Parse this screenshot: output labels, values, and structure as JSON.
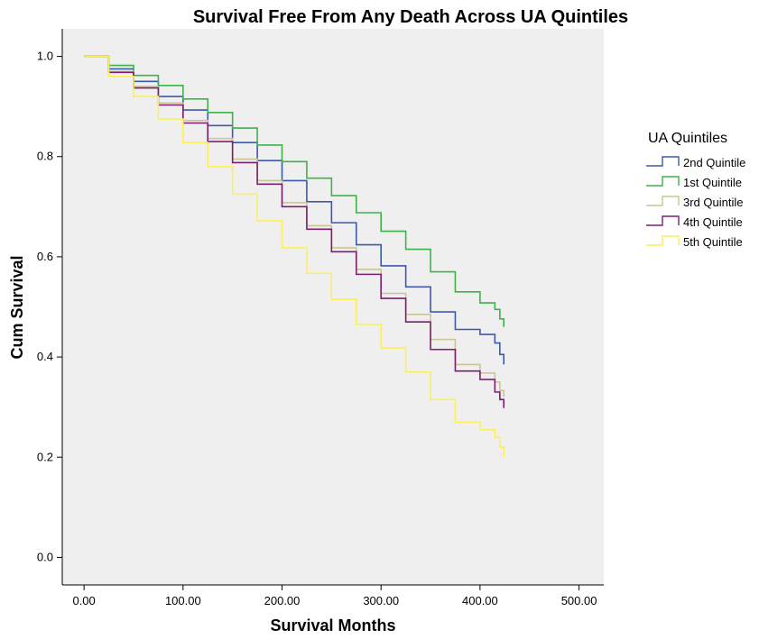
{
  "chart_data": {
    "type": "line",
    "title": "Survival Free From Any Death Across UA Quintiles",
    "xlabel": "Survival Months",
    "ylabel": "Cum Survival",
    "xlim": [
      -22,
      525
    ],
    "ylim": [
      -0.055,
      1.055
    ],
    "xticks": [
      0,
      100,
      200,
      300,
      400,
      500
    ],
    "xtick_labels": [
      "0.00",
      "100.00",
      "200.00",
      "300.00",
      "400.00",
      "500.00"
    ],
    "yticks": [
      0.0,
      0.2,
      0.4,
      0.6,
      0.8,
      1.0
    ],
    "ytick_labels": [
      "0.0",
      "0.2",
      "0.4",
      "0.6",
      "0.8",
      "1.0"
    ],
    "background": "#efefef",
    "grid": false,
    "step": true,
    "legend": {
      "title": "UA Quintiles",
      "placement": "right"
    },
    "series": [
      {
        "name": "2nd Quintile",
        "color": "#3e58ac",
        "x": [
          0,
          25,
          50,
          75,
          100,
          125,
          150,
          175,
          200,
          225,
          250,
          275,
          300,
          325,
          350,
          375,
          400,
          415,
          420,
          424
        ],
        "y": [
          1.0,
          0.975,
          0.95,
          0.92,
          0.893,
          0.862,
          0.828,
          0.792,
          0.752,
          0.71,
          0.668,
          0.624,
          0.582,
          0.54,
          0.49,
          0.455,
          0.445,
          0.428,
          0.405,
          0.385
        ]
      },
      {
        "name": "1st Quintile",
        "color": "#3fb24a",
        "x": [
          0,
          25,
          50,
          75,
          100,
          125,
          150,
          175,
          200,
          225,
          250,
          275,
          300,
          325,
          350,
          375,
          400,
          415,
          420,
          424
        ],
        "y": [
          1.0,
          0.982,
          0.962,
          0.942,
          0.915,
          0.888,
          0.857,
          0.823,
          0.79,
          0.757,
          0.722,
          0.688,
          0.651,
          0.615,
          0.57,
          0.53,
          0.508,
          0.495,
          0.476,
          0.46
        ]
      },
      {
        "name": "3rd Quintile",
        "color": "#c9c595",
        "x": [
          0,
          25,
          50,
          75,
          100,
          125,
          150,
          175,
          200,
          225,
          250,
          275,
          300,
          325,
          350,
          375,
          400,
          415,
          420,
          424
        ],
        "y": [
          1.0,
          0.97,
          0.94,
          0.907,
          0.872,
          0.836,
          0.795,
          0.752,
          0.708,
          0.662,
          0.618,
          0.575,
          0.527,
          0.485,
          0.435,
          0.385,
          0.368,
          0.35,
          0.333,
          0.32
        ]
      },
      {
        "name": "4th Quintile",
        "color": "#7e1e6e",
        "x": [
          0,
          25,
          50,
          75,
          100,
          125,
          150,
          175,
          200,
          225,
          250,
          275,
          300,
          325,
          350,
          375,
          400,
          415,
          420,
          424
        ],
        "y": [
          1.0,
          0.968,
          0.937,
          0.903,
          0.867,
          0.83,
          0.788,
          0.745,
          0.7,
          0.655,
          0.61,
          0.565,
          0.517,
          0.47,
          0.415,
          0.372,
          0.355,
          0.33,
          0.315,
          0.298
        ]
      },
      {
        "name": "5th Quintile",
        "color": "#fbf059",
        "x": [
          0,
          25,
          50,
          75,
          100,
          125,
          150,
          175,
          200,
          225,
          250,
          275,
          300,
          325,
          350,
          375,
          400,
          415,
          420,
          424
        ],
        "y": [
          1.0,
          0.96,
          0.92,
          0.875,
          0.828,
          0.78,
          0.725,
          0.672,
          0.618,
          0.567,
          0.515,
          0.465,
          0.418,
          0.37,
          0.315,
          0.27,
          0.255,
          0.24,
          0.22,
          0.2
        ]
      }
    ]
  }
}
